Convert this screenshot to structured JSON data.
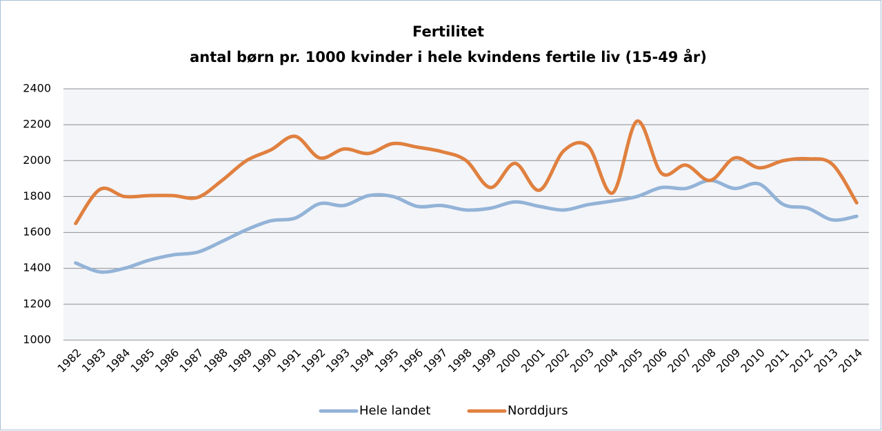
{
  "chart_data": {
    "type": "line",
    "title": "Fertilitet",
    "subtitle": "antal børn pr. 1000 kvinder i hele kvindens fertile liv (15-49 år)",
    "categories": [
      "1982",
      "1983",
      "1984",
      "1985",
      "1986",
      "1987",
      "1988",
      "1989",
      "1990",
      "1991",
      "1992",
      "1993",
      "1994",
      "1995",
      "1996",
      "1997",
      "1998",
      "1999",
      "2000",
      "2001",
      "2002",
      "2003",
      "2004",
      "2005",
      "2006",
      "2007",
      "2008",
      "2009",
      "2010",
      "2011",
      "2012",
      "2013",
      "2014"
    ],
    "series": [
      {
        "name": "Hele landet",
        "color": "#93b3d7",
        "values": [
          1430,
          1380,
          1400,
          1445,
          1475,
          1490,
          1550,
          1615,
          1665,
          1680,
          1760,
          1750,
          1805,
          1800,
          1745,
          1750,
          1725,
          1735,
          1770,
          1745,
          1725,
          1755,
          1775,
          1800,
          1850,
          1845,
          1890,
          1845,
          1870,
          1755,
          1735,
          1670,
          1690
        ]
      },
      {
        "name": "Norddjurs",
        "color": "#e0803f",
        "values": [
          1650,
          1840,
          1800,
          1805,
          1805,
          1795,
          1890,
          2000,
          2060,
          2135,
          2015,
          2065,
          2040,
          2095,
          2075,
          2050,
          2000,
          1850,
          1985,
          1835,
          2055,
          2080,
          1820,
          2220,
          1930,
          1975,
          1890,
          2015,
          1960,
          2000,
          2010,
          1980,
          1765
        ]
      }
    ],
    "ylim": [
      1000,
      2400
    ],
    "yticks": [
      1000,
      1200,
      1400,
      1600,
      1800,
      2000,
      2200,
      2400
    ],
    "grid": true,
    "legend": "bottom"
  }
}
